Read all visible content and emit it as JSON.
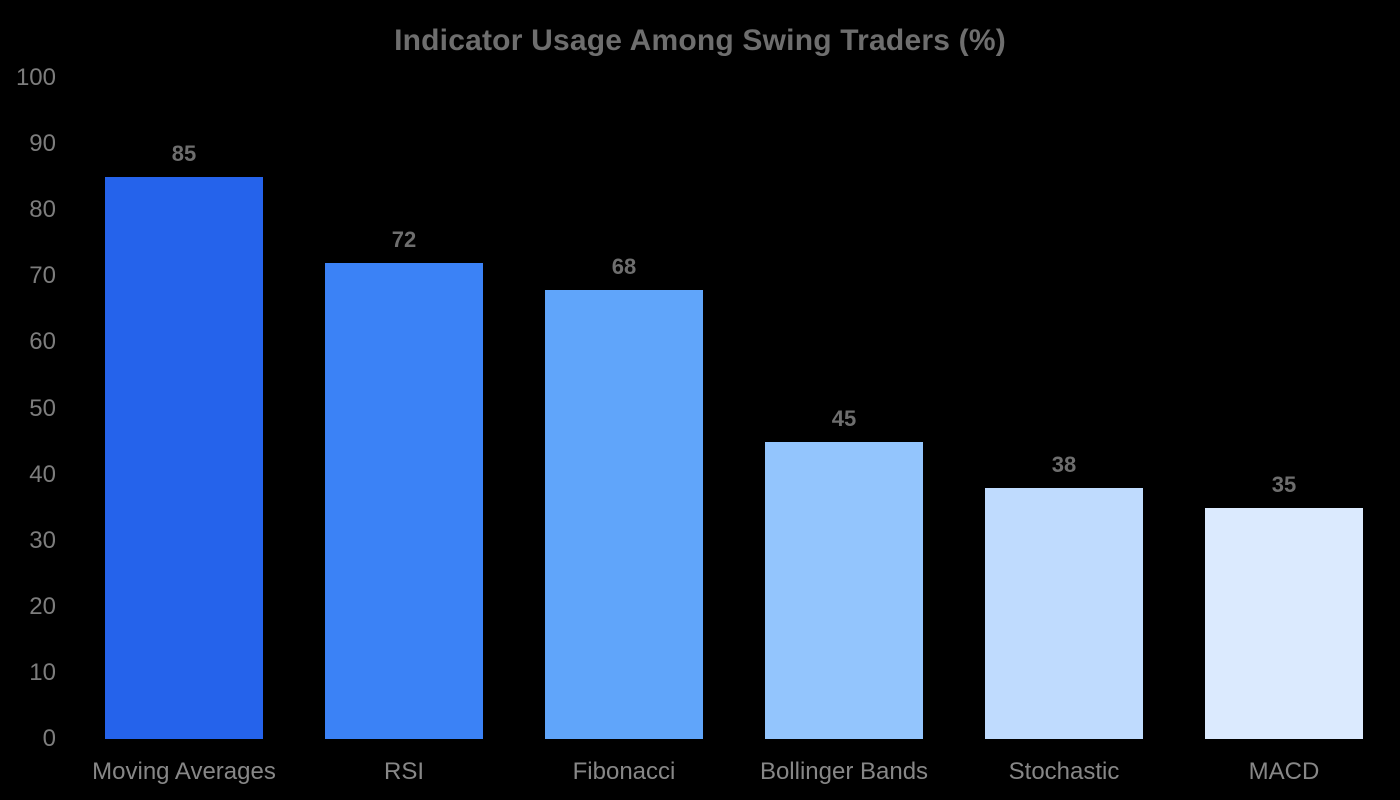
{
  "chart_data": {
    "type": "bar",
    "title": "Indicator Usage Among Swing Traders (%)",
    "categories": [
      "Moving Averages",
      "RSI",
      "Fibonacci",
      "Bollinger Bands",
      "Stochastic",
      "MACD"
    ],
    "values": [
      85,
      72,
      68,
      45,
      38,
      35
    ],
    "bar_colors": [
      "#2563eb",
      "#3b82f6",
      "#60a5fa",
      "#93c5fd",
      "#bfdbfe",
      "#dbeafe"
    ],
    "xlabel": "",
    "ylabel": "",
    "ylim": [
      0,
      100
    ],
    "yticks": [
      0,
      10,
      20,
      30,
      40,
      50,
      60,
      70,
      80,
      90,
      100
    ],
    "grid": false,
    "legend": false,
    "value_labels_shown": true,
    "background_color": "#000000",
    "title_color": "#6e6e6e",
    "value_label_color": "#6e6e6e",
    "ytick_label_color": "#7d7d7d",
    "xtick_label_color": "#878787"
  }
}
